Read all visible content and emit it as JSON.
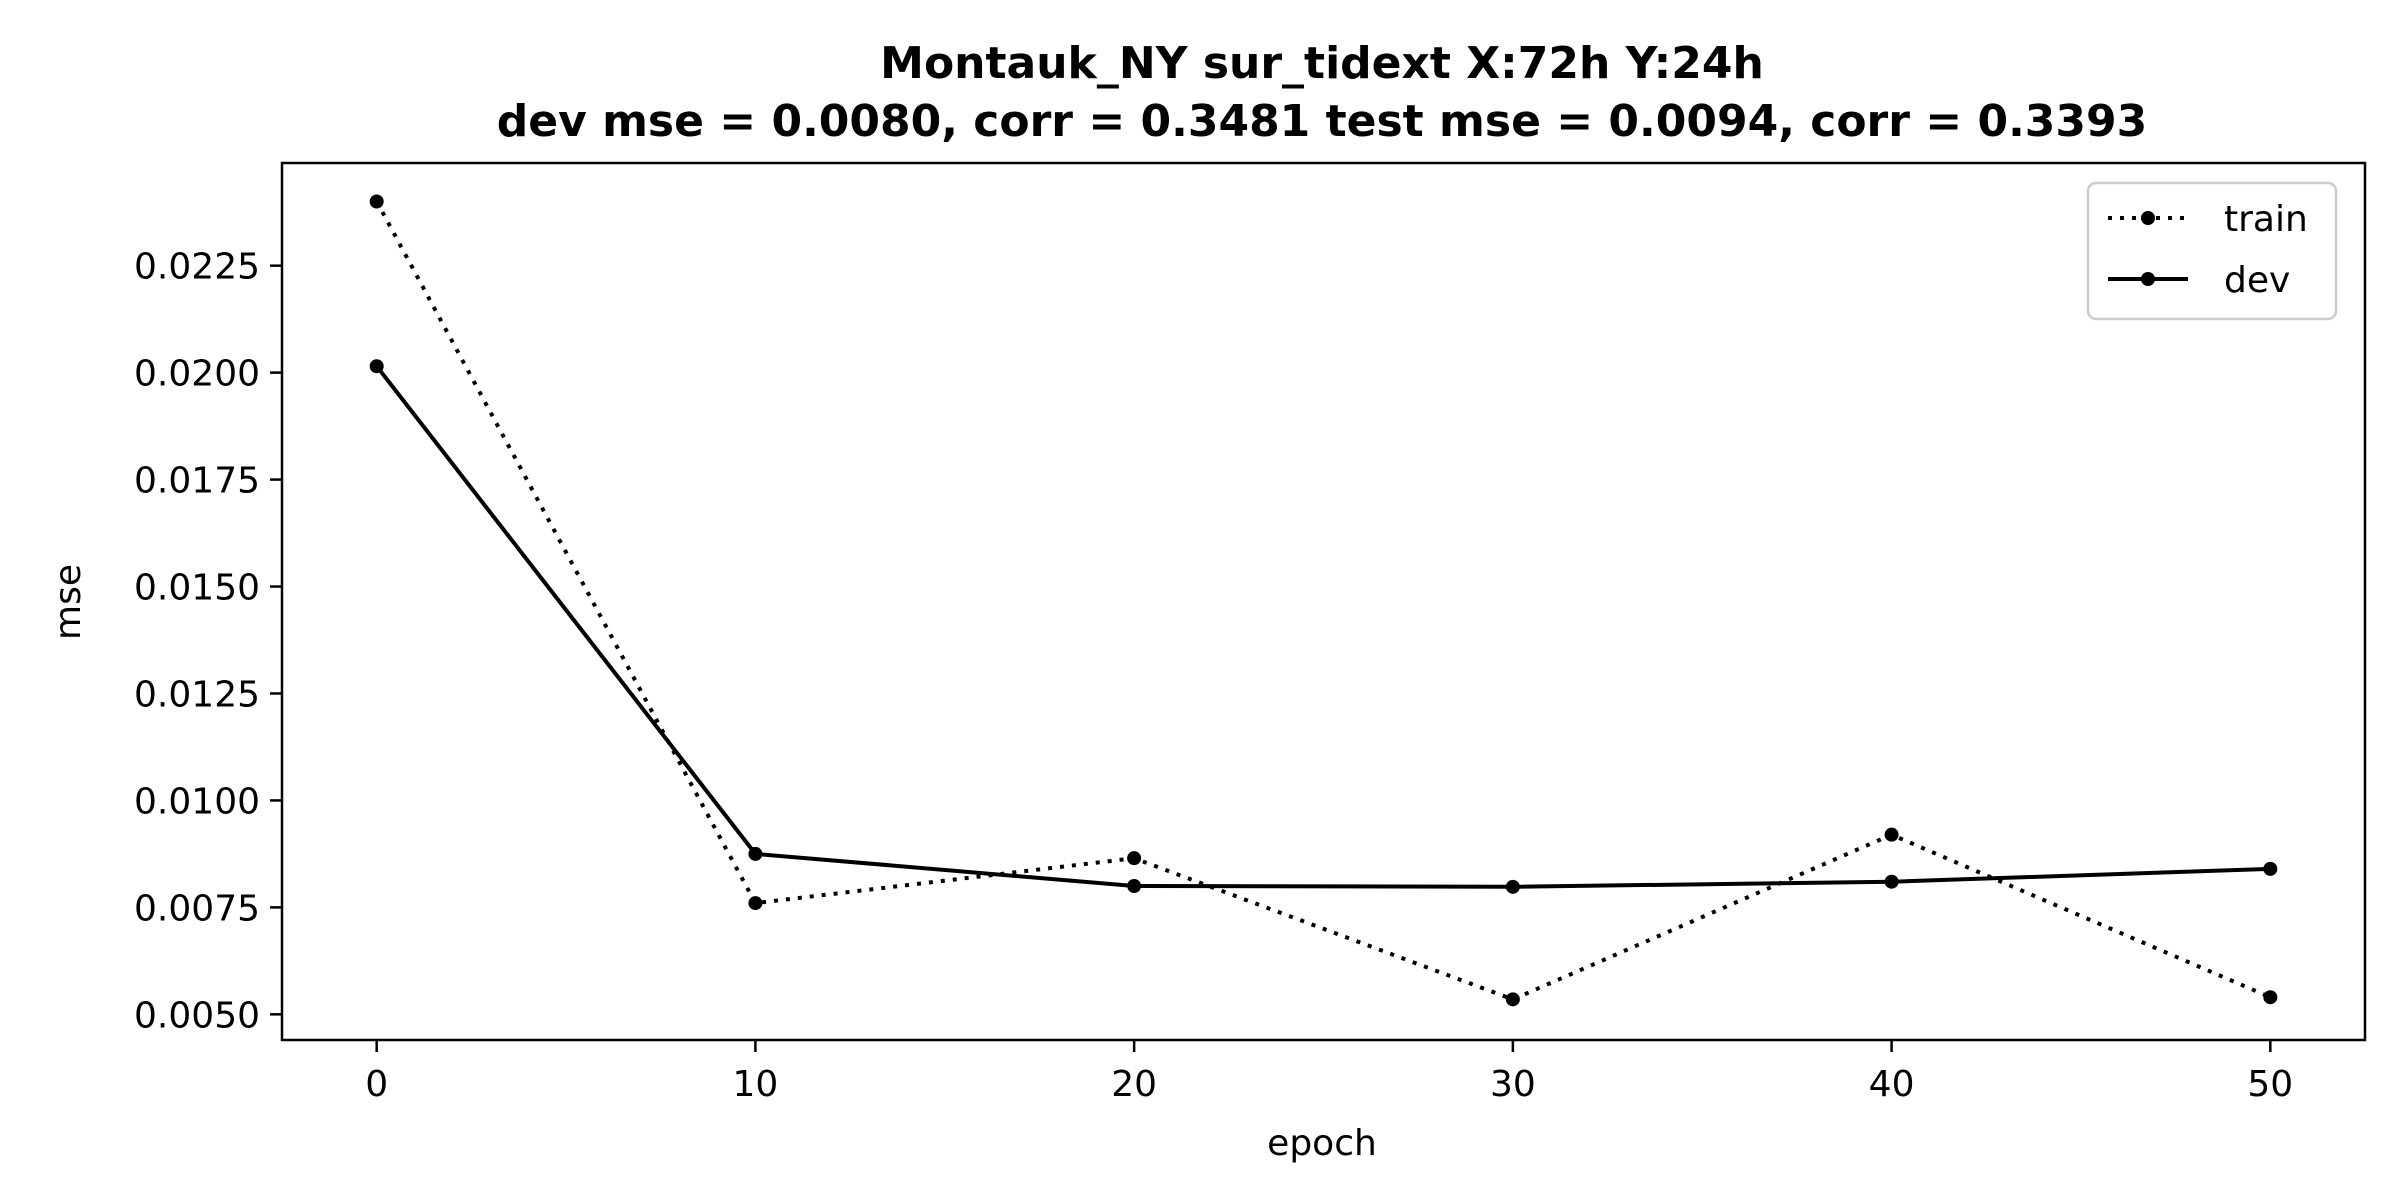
{
  "chart_data": {
    "type": "line",
    "title_line1": "Montauk_NY   sur_tidext   X:72h   Y:24h",
    "title_line2": "dev mse = 0.0080, corr = 0.3481   test mse = 0.0094, corr = 0.3393",
    "xlabel": "epoch",
    "ylabel": "mse",
    "x": [
      0,
      10,
      20,
      30,
      40,
      50
    ],
    "series": [
      {
        "name": "train",
        "line_style": "dotted",
        "values": [
          0.024,
          0.0076,
          0.00865,
          0.00535,
          0.0092,
          0.0054
        ]
      },
      {
        "name": "dev",
        "line_style": "solid",
        "values": [
          0.02015,
          0.00875,
          0.008,
          0.00798,
          0.0081,
          0.0084
        ]
      }
    ],
    "xlim": [
      -2.5,
      52.5
    ],
    "ylim": [
      0.0044,
      0.0249
    ],
    "xticks": [
      0,
      10,
      20,
      30,
      40,
      50
    ],
    "xtick_labels": [
      "0",
      "10",
      "20",
      "30",
      "40",
      "50"
    ],
    "yticks": [
      0.005,
      0.0075,
      0.01,
      0.0125,
      0.015,
      0.0175,
      0.02,
      0.0225
    ],
    "ytick_labels": [
      "0.0050",
      "0.0075",
      "0.0100",
      "0.0125",
      "0.0150",
      "0.0175",
      "0.0200",
      "0.0225"
    ],
    "grid": false,
    "legend_position": "top-right",
    "line_color": "#000000"
  }
}
